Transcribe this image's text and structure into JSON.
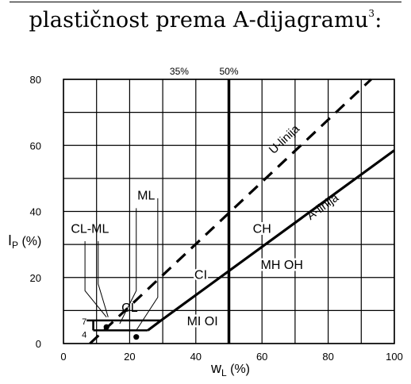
{
  "heading": {
    "text": "plastičnost prema A-dijagramu",
    "footnote": "3",
    "suffix": ":"
  },
  "chart_data": {
    "type": "line",
    "title": "",
    "xlabel_main": "w",
    "xlabel_sub": "L",
    "xlabel_unit": " (%)",
    "ylabel_main": "I",
    "ylabel_sub": "P",
    "ylabel_unit": " (%)",
    "xlim": [
      0,
      100
    ],
    "ylim": [
      0,
      80
    ],
    "x_ticks": [
      "0",
      "20",
      "40",
      "60",
      "80",
      "100"
    ],
    "y_ticks": [
      "0",
      "20",
      "40",
      "60",
      "80"
    ],
    "grid": true,
    "series": [
      {
        "name": "A-linija",
        "style": "solid",
        "points": [
          [
            25.5,
            4
          ],
          [
            29.5,
            7
          ],
          [
            100,
            58.5
          ]
        ]
      },
      {
        "name": "U-linija",
        "style": "dashed",
        "points": [
          [
            8,
            0
          ],
          [
            93,
            80
          ]
        ]
      }
    ],
    "boundaries": [
      {
        "label": "50%",
        "x": 50
      },
      {
        "label": "35%",
        "x": 35
      }
    ],
    "regions": [
      {
        "label": "CL-ML",
        "x": 8,
        "y": 35
      },
      {
        "label": "ML",
        "x": 25,
        "y": 45
      },
      {
        "label": "CL",
        "x": 20,
        "y": 11
      },
      {
        "label": "CI",
        "x": 41.5,
        "y": 21
      },
      {
        "label": "CH",
        "x": 60,
        "y": 35
      },
      {
        "label": "MH OH",
        "x": 66,
        "y": 24
      },
      {
        "label": "MI OI",
        "x": 42,
        "y": 7
      }
    ],
    "band_levels": [
      {
        "label": "7",
        "y": 7
      },
      {
        "label": "4",
        "y": 4
      }
    ],
    "points": [
      [
        13,
        5
      ],
      [
        22,
        2
      ]
    ],
    "colors": {
      "line": "#000000",
      "grid": "#000000",
      "background": "#ffffff"
    }
  }
}
